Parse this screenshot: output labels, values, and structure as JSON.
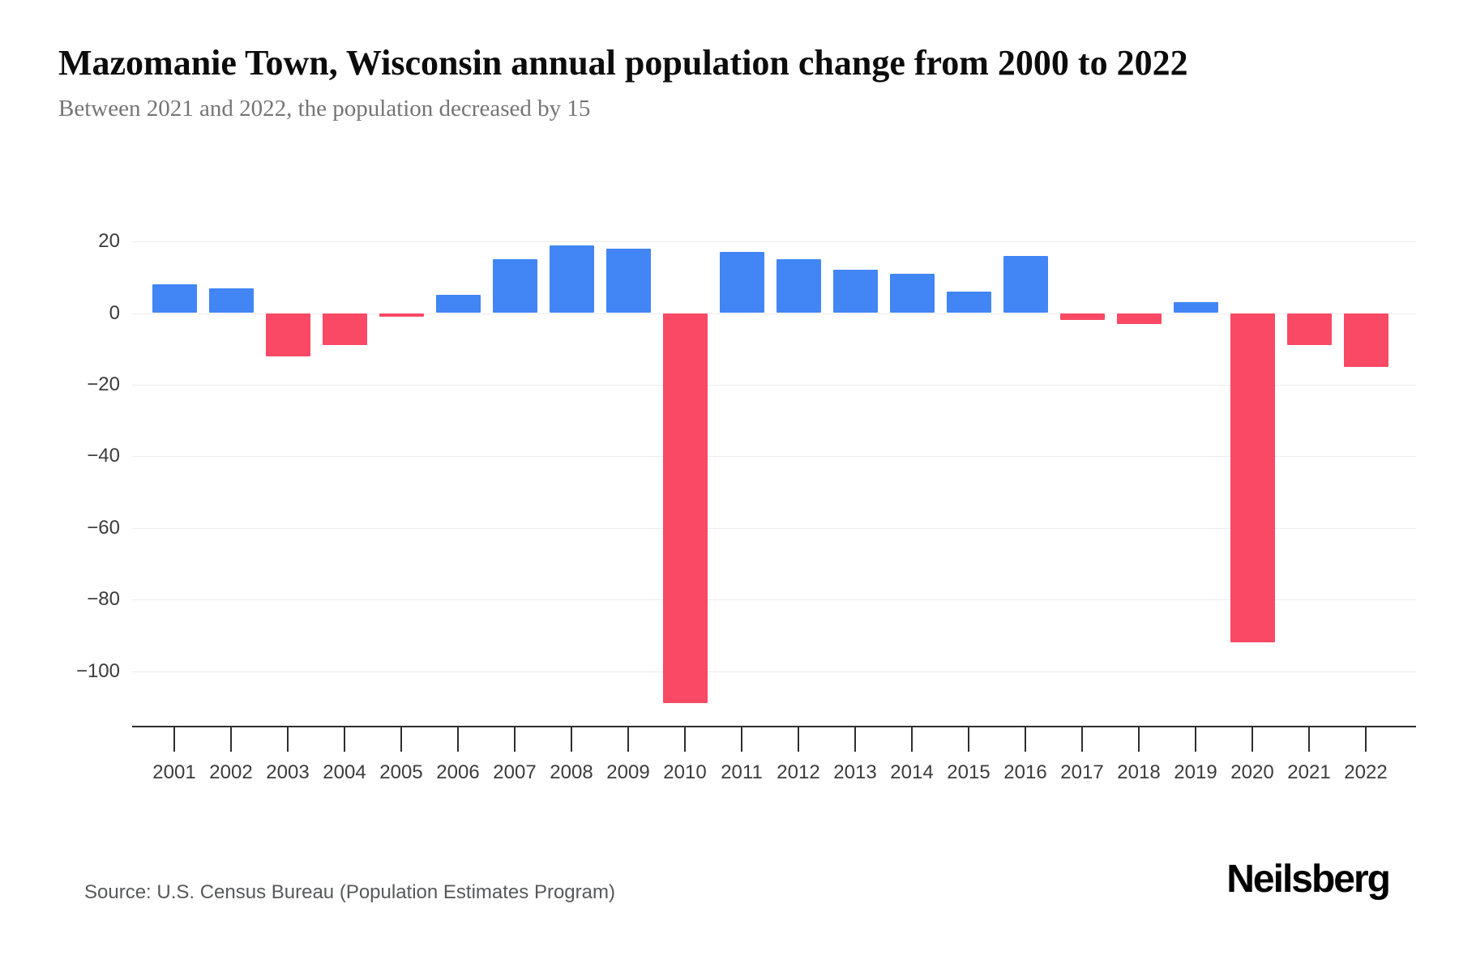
{
  "page": {
    "background": "#ffffff"
  },
  "header": {
    "title": "Mazomanie Town, Wisconsin annual population change from 2000 to 2022",
    "subtitle": "Between 2021 and 2022, the population decreased by 15"
  },
  "chart_data": {
    "type": "bar",
    "title": "Mazomanie Town, Wisconsin annual population change from 2000 to 2022",
    "xlabel": "",
    "ylabel": "",
    "categories": [
      "2001",
      "2002",
      "2003",
      "2004",
      "2005",
      "2006",
      "2007",
      "2008",
      "2009",
      "2010",
      "2011",
      "2012",
      "2013",
      "2014",
      "2015",
      "2016",
      "2017",
      "2018",
      "2019",
      "2020",
      "2021",
      "2022"
    ],
    "values": [
      8,
      7,
      -12,
      -9,
      -1,
      5,
      15,
      19,
      18,
      -109,
      17,
      15,
      12,
      11,
      6,
      16,
      -2,
      -3,
      3,
      -92,
      -9,
      -15
    ],
    "yticks": [
      20,
      0,
      -20,
      -40,
      -60,
      -80,
      -100
    ],
    "ytick_labels": [
      "20",
      "0",
      "−20",
      "−40",
      "−60",
      "−80",
      "−100"
    ],
    "ylim": [
      -116,
      26
    ],
    "grid": true,
    "legend_position": "none",
    "colors": {
      "positive": "#4285F4",
      "negative": "#F94965",
      "gridline": "#ECECEC",
      "axis": "#2E2E2E",
      "tick_label": "#3C3C3C"
    }
  },
  "footer": {
    "source": "Source: U.S. Census Bureau (Population Estimates Program)",
    "brand": "Neilsberg"
  }
}
